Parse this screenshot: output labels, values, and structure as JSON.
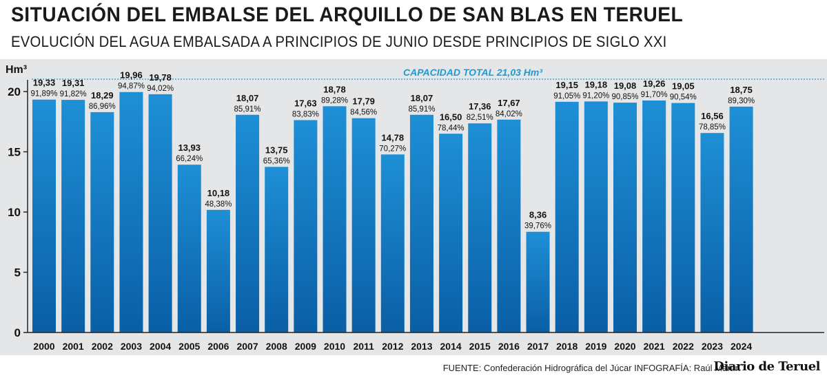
{
  "header": {
    "title": "SITUACIÓN DEL EMBALSE DEL ARQUILLO DE SAN BLAS EN TERUEL",
    "subtitle": "EVOLUCIÓN DEL AGUA EMBALSADA A PRINCIPIOS DE JUNIO DESDE PRINCIPIOS DE SIGLO XXI"
  },
  "footer": {
    "source": "FUENTE: Confederación Hidrográfica del Júcar  INFOGRAFÍA: Raúl Martín",
    "logo": "Diario de Teruel"
  },
  "colors": {
    "bar_top": "#1e8fd6",
    "bar_bottom": "#0a5fa6",
    "accent": "#1e9ad6",
    "background": "#e5e6e8",
    "text": "#1a1a1a"
  },
  "chart_data": {
    "type": "bar",
    "ylabel": "Hm³",
    "ylim": [
      0,
      21.03
    ],
    "yticks": [
      0,
      5,
      10,
      15,
      20
    ],
    "grid": false,
    "categories": [
      "2000",
      "2001",
      "2002",
      "2003",
      "2004",
      "2005",
      "2006",
      "2007",
      "2008",
      "2009",
      "2010",
      "2011",
      "2012",
      "2013",
      "2014",
      "2015",
      "2016",
      "2017",
      "2018",
      "2019",
      "2020",
      "2021",
      "2022",
      "2023",
      "2024"
    ],
    "values": [
      19.33,
      19.31,
      18.29,
      19.96,
      19.78,
      13.93,
      10.18,
      18.07,
      13.75,
      17.63,
      18.78,
      17.79,
      14.78,
      18.07,
      16.5,
      17.36,
      17.67,
      8.36,
      19.15,
      19.18,
      19.08,
      19.26,
      19.05,
      16.56,
      18.75
    ],
    "value_labels": [
      "19,33",
      "19,31",
      "18,29",
      "19,96",
      "19,78",
      "13,93",
      "10,18",
      "18,07",
      "13,75",
      "17,63",
      "18,78",
      "17,79",
      "14,78",
      "18,07",
      "16,50",
      "17,36",
      "17,67",
      "8,36",
      "19,15",
      "19,18",
      "19,08",
      "19,26",
      "19,05",
      "16,56",
      "18,75"
    ],
    "percent_labels": [
      "91,89%",
      "91,82%",
      "86,96%",
      "94,87%",
      "94,02%",
      "66,24%",
      "48,38%",
      "85,91%",
      "65,36%",
      "83,83%",
      "89,28%",
      "84,56%",
      "70,27%",
      "85,91%",
      "78,44%",
      "82,51%",
      "84,02%",
      "39,76%",
      "91,05%",
      "91,20%",
      "90,85%",
      "91,70%",
      "90,54%",
      "78,85%",
      "89,30%"
    ],
    "annotation": {
      "label": "CAPACIDAD TOTAL 21,03 Hm³",
      "value": 21.03
    }
  }
}
